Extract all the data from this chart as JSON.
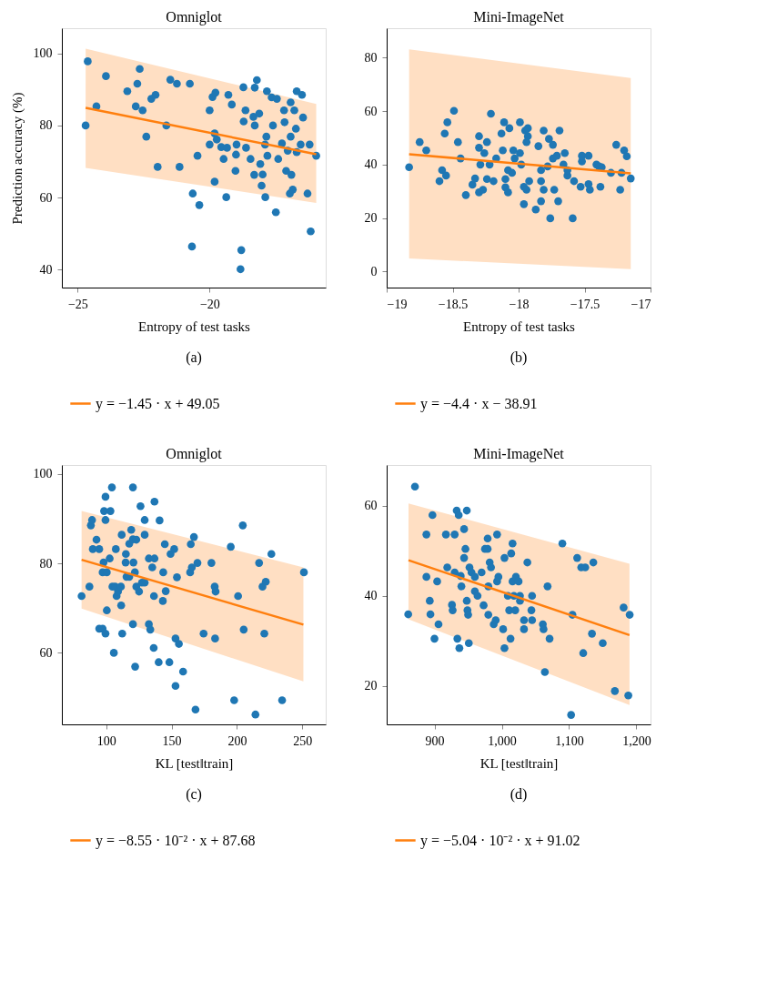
{
  "chart_data": [
    {
      "type": "scatter",
      "title": "Omniglot",
      "xlabel": "Entropy of test tasks",
      "ylabel": "Prediction accuracy (%)",
      "xlim": [
        -25.6,
        -15.6
      ],
      "ylim": [
        35,
        107
      ],
      "xticks": [
        {
          "value": -25,
          "label": "−25"
        },
        {
          "value": -20,
          "label": "−20"
        }
      ],
      "yticks": [
        40,
        60,
        80,
        100
      ],
      "legend": "bottom",
      "annotations": [
        "(a)"
      ],
      "series": [
        {
          "color": "#1f77b4",
          "marker": "circle",
          "x": [
            -24.62,
            -24.7,
            -24.29,
            -23.93,
            -23.12,
            -22.74,
            -22.65,
            -22.8,
            -22.54,
            -22.4,
            -22.21,
            -22.05,
            -21.97,
            -21.64,
            -21.49,
            -21.24,
            -21.14,
            -20.75,
            -20.64,
            -20.67,
            -20.46,
            -20.39,
            -20.0,
            -19.89,
            -19.78,
            -19.81,
            -19.81,
            -20.0,
            -19.73,
            -19.56,
            -19.34,
            -19.47,
            -19.37,
            -19.29,
            -19.16,
            -19.02,
            -18.98,
            -19.0,
            -18.8,
            -18.83,
            -18.72,
            -18.64,
            -18.71,
            -18.62,
            -18.45,
            -18.34,
            -18.31,
            -18.29,
            -18.21,
            -18.12,
            -18.29,
            -18.08,
            -18.03,
            -17.99,
            -17.9,
            -17.85,
            -17.89,
            -17.83,
            -17.81,
            -17.65,
            -17.6,
            -17.45,
            -17.49,
            -17.4,
            -17.26,
            -17.18,
            -17.16,
            -17.1,
            -17.04,
            -16.96,
            -16.93,
            -16.93,
            -16.9,
            -16.85,
            -16.79,
            -16.73,
            -16.7,
            -16.7,
            -16.55,
            -16.5,
            -16.46,
            -16.29,
            -16.21,
            -16.17,
            -15.96
          ],
          "values": [
            97.8,
            80.0,
            85.3,
            93.7,
            89.5,
            91.6,
            95.7,
            85.3,
            84.2,
            76.9,
            87.4,
            88.5,
            68.5,
            80.0,
            92.7,
            91.6,
            68.5,
            91.6,
            61.1,
            46.4,
            71.6,
            57.9,
            84.2,
            87.9,
            89.1,
            77.8,
            64.4,
            74.7,
            76.1,
            74.0,
            73.8,
            70.7,
            60.1,
            88.5,
            85.8,
            67.4,
            74.7,
            71.9,
            45.4,
            40.1,
            90.6,
            84.2,
            81.1,
            73.8,
            70.7,
            82.4,
            66.3,
            90.5,
            92.6,
            83.3,
            80.0,
            69.3,
            63.3,
            66.4,
            74.7,
            76.9,
            60.1,
            89.5,
            71.6,
            87.8,
            80.0,
            87.4,
            55.9,
            70.7,
            75.0,
            84.2,
            80.9,
            67.4,
            73.0,
            61.1,
            86.4,
            76.9,
            66.3,
            62.2,
            84.2,
            79.1,
            89.5,
            72.6,
            74.7,
            88.5,
            82.2,
            61.1,
            74.7,
            50.6,
            71.6
          ]
        },
        {
          "type": "line",
          "name": "y = −1.45 · x + 49.05",
          "color": "#ff7f0e",
          "x": [
            -24.7,
            -15.96
          ],
          "values": [
            84.9,
            72.0
          ],
          "lower": [
            68.2,
            58.5
          ],
          "upper": [
            101.3,
            86.0
          ]
        }
      ]
    },
    {
      "type": "scatter",
      "title": "Mini-ImageNet",
      "xlabel": "Entropy of test tasks",
      "xlim": [
        -19,
        -17
      ],
      "ylim": [
        -6,
        91
      ],
      "xticks": [
        {
          "value": -19,
          "label": "−19"
        },
        {
          "value": -18.5,
          "label": "−18.5"
        },
        {
          "value": -18,
          "label": "−18"
        },
        {
          "value": -17.5,
          "label": "−17.5"
        },
        {
          "value": -17,
          "label": "−17"
        }
      ],
      "yticks": [
        0,
        20,
        40,
        60,
        80
      ],
      "legend": "bottom",
      "annotations": [
        "(b)"
      ],
      "series": [
        {
          "color": "#1f77b4",
          "marker": "circle",
          "x": [
            -18.83,
            -18.75,
            -18.7,
            -18.6,
            -18.58,
            -18.55,
            -18.56,
            -18.54,
            -18.49,
            -18.46,
            -18.44,
            -18.4,
            -18.35,
            -18.33,
            -18.3,
            -18.27,
            -18.3,
            -18.3,
            -18.26,
            -18.29,
            -18.24,
            -18.24,
            -18.22,
            -18.21,
            -18.19,
            -18.17,
            -18.13,
            -18.11,
            -18.12,
            -18.1,
            -18.1,
            -18.08,
            -18.07,
            -18.08,
            -18.05,
            -18.04,
            -18.03,
            -17.99,
            -17.99,
            -17.98,
            -17.96,
            -17.96,
            -17.95,
            -17.93,
            -17.93,
            -17.94,
            -17.94,
            -17.92,
            -17.87,
            -17.85,
            -17.83,
            -17.83,
            -17.83,
            -17.81,
            -17.81,
            -17.78,
            -17.77,
            -17.76,
            -17.74,
            -17.74,
            -17.73,
            -17.71,
            -17.7,
            -17.69,
            -17.66,
            -17.65,
            -17.63,
            -17.63,
            -17.59,
            -17.58,
            -17.53,
            -17.52,
            -17.52,
            -17.47,
            -17.47,
            -17.46,
            -17.41,
            -17.39,
            -17.38,
            -17.37,
            -17.3,
            -17.26,
            -17.23,
            -17.22,
            -17.2,
            -17.18,
            -17.15
          ],
          "values": [
            39.0,
            48.4,
            45.3,
            33.8,
            37.9,
            35.9,
            51.6,
            55.8,
            60.1,
            48.4,
            42.3,
            28.6,
            32.5,
            34.8,
            29.6,
            30.6,
            50.6,
            46.3,
            44.3,
            40.0,
            48.4,
            34.6,
            40.0,
            59.0,
            33.8,
            42.3,
            51.6,
            55.8,
            45.3,
            34.6,
            31.5,
            29.6,
            53.6,
            37.9,
            36.9,
            45.3,
            42.3,
            55.8,
            44.3,
            40.0,
            31.7,
            25.2,
            52.7,
            53.6,
            50.6,
            48.4,
            30.6,
            33.8,
            23.2,
            46.9,
            37.9,
            33.8,
            26.3,
            52.7,
            30.6,
            39.3,
            49.6,
            19.9,
            47.4,
            42.3,
            30.6,
            43.3,
            26.3,
            52.7,
            40.0,
            44.3,
            35.9,
            37.9,
            19.9,
            33.8,
            31.7,
            41.2,
            43.3,
            43.3,
            32.7,
            30.6,
            40.0,
            39.3,
            31.7,
            39.0,
            36.9,
            47.4,
            30.6,
            36.9,
            45.3,
            43.1,
            34.8
          ]
        },
        {
          "type": "line",
          "name": "y = −4.4 · x − 38.91",
          "color": "#ff7f0e",
          "x": [
            -18.83,
            -17.15
          ],
          "values": [
            43.9,
            36.7
          ],
          "lower": [
            4.9,
            0.9
          ],
          "upper": [
            83.1,
            72.4
          ]
        }
      ]
    },
    {
      "type": "scatter",
      "title": "Omniglot",
      "xlabel": "KL [test‖train]",
      "xlim": [
        66,
        268
      ],
      "ylim": [
        44,
        102
      ],
      "xticks": [
        100,
        150,
        200,
        250
      ],
      "yticks": [
        60,
        80,
        100
      ],
      "legend": "bottom",
      "annotations": [
        "(c)"
      ],
      "series": [
        {
          "color": "#1f77b4",
          "marker": "circle",
          "x": [
            81.1,
            87.1,
            88.2,
            89.1,
            92.5,
            89.7,
            94.6,
            94.6,
            97.2,
            99.4,
            97.9,
            97.2,
            100.4,
            99.4,
            99.4,
            98.3,
            103.2,
            104.3,
            102.6,
            104.7,
            107.9,
            106.8,
            109.0,
            111.2,
            111.4,
            100.4,
            105.8,
            112.2,
            107.3,
            111.8,
            115.0,
            114.8,
            117.6,
            119.1,
            120.4,
            123.0,
            120.4,
            120.8,
            115.5,
            117.6,
            121.9,
            120.4,
            122.1,
            123.0,
            125.1,
            126.2,
            129.4,
            129.4,
            127.3,
            129.4,
            132.6,
            135.2,
            136.9,
            136.9,
            140.8,
            132.6,
            133.7,
            136.5,
            136.3,
            140.1,
            143.3,
            143.6,
            144.8,
            145.5,
            148.3,
            149.2,
            152.0,
            154.1,
            153.0,
            155.6,
            153.0,
            158.8,
            164.2,
            165.5,
            169.8,
            164.7,
            167.1,
            168.3,
            174.5,
            180.5,
            183.0,
            183.7,
            183.3,
            195.3,
            197.9,
            200.9,
            204.5,
            205.2,
            214.2,
            217.0,
            219.6,
            222.1,
            221.0,
            226.4,
            234.6,
            251.3
          ],
          "values": [
            72.7,
            74.8,
            88.5,
            89.7,
            85.3,
            83.2,
            83.2,
            65.4,
            65.4,
            64.3,
            80.2,
            78.0,
            78.0,
            89.7,
            94.9,
            91.7,
            91.7,
            97.0,
            81.1,
            74.8,
            72.7,
            74.8,
            73.7,
            74.8,
            70.6,
            69.5,
            60.0,
            64.3,
            83.2,
            86.4,
            82.1,
            80.2,
            84.4,
            87.5,
            85.4,
            85.3,
            97.0,
            80.2,
            77.0,
            77.0,
            78.0,
            66.4,
            56.9,
            74.8,
            73.7,
            92.8,
            89.7,
            86.4,
            75.7,
            75.7,
            81.1,
            79.1,
            81.1,
            93.8,
            89.6,
            66.4,
            65.2,
            72.7,
            61.1,
            57.9,
            71.6,
            78.0,
            84.3,
            73.8,
            57.9,
            82.1,
            83.2,
            76.9,
            63.2,
            62.0,
            52.6,
            55.8,
            78.0,
            79.1,
            80.1,
            84.3,
            85.9,
            47.3,
            64.3,
            80.1,
            74.8,
            73.7,
            63.2,
            83.7,
            49.4,
            72.7,
            88.5,
            65.2,
            46.2,
            80.1,
            74.8,
            75.9,
            64.3,
            82.1,
            49.4,
            78.0
          ]
        },
        {
          "type": "line",
          "name": "y = −8.55 · 10⁻² · x + 87.68",
          "color": "#ff7f0e",
          "x": [
            81.1,
            250.9
          ],
          "values": [
            80.8,
            66.3
          ],
          "lower": [
            69.9,
            53.6
          ],
          "upper": [
            91.7,
            79.1
          ]
        }
      ]
    },
    {
      "type": "scatter",
      "title": "Mini-ImageNet",
      "xlabel": "KL [test‖train]",
      "xlim": [
        829,
        1221
      ],
      "ylim": [
        11.5,
        69
      ],
      "xticks": [
        {
          "value": 900,
          "label": "900"
        },
        {
          "value": 1000,
          "label": "1,000"
        },
        {
          "value": 1100,
          "label": "1,100"
        },
        {
          "value": 1200,
          "label": "1,200"
        }
      ],
      "yticks": [
        20,
        40,
        60
      ],
      "legend": "bottom",
      "annotations": [
        "(d)"
      ],
      "series": [
        {
          "color": "#1f77b4",
          "marker": "circle",
          "x": [
            871,
            861,
            888,
            888,
            893,
            894,
            897,
            900,
            904,
            906,
            917,
            919,
            926,
            927,
            930,
            930,
            933,
            934,
            936,
            937,
            939,
            940,
            944,
            944,
            946,
            948,
            948,
            949,
            950,
            951,
            952,
            955,
            960,
            960,
            964,
            970,
            973,
            975,
            979,
            979,
            980,
            980,
            982,
            984,
            988,
            991,
            993,
            993,
            995,
            1002,
            1004,
            1004,
            1009,
            1011,
            1013,
            1014,
            1016,
            1016,
            1018,
            1020,
            1021,
            1025,
            1027,
            1027,
            1033,
            1033,
            1038,
            1044,
            1045,
            1045,
            1061,
            1062,
            1064,
            1068,
            1071,
            1090,
            1103,
            1105,
            1112,
            1118,
            1121,
            1124,
            1134,
            1136,
            1150,
            1168,
            1181,
            1188,
            1190
          ],
          "values": [
            64.2,
            35.9,
            53.6,
            44.2,
            38.9,
            35.9,
            57.9,
            30.5,
            43.2,
            33.7,
            53.6,
            46.3,
            38.0,
            36.8,
            53.6,
            45.2,
            58.9,
            30.5,
            57.9,
            28.4,
            44.4,
            42.1,
            54.8,
            48.4,
            50.4,
            58.9,
            38.9,
            36.8,
            35.8,
            29.5,
            46.3,
            45.2,
            44.2,
            41.0,
            40.0,
            45.2,
            37.9,
            50.4,
            50.4,
            52.7,
            42.1,
            35.8,
            47.4,
            46.3,
            33.7,
            34.6,
            43.2,
            53.6,
            44.2,
            32.6,
            48.4,
            28.4,
            40.0,
            36.8,
            30.5,
            49.4,
            51.6,
            43.2,
            40.0,
            36.8,
            44.2,
            43.2,
            40.0,
            38.9,
            34.6,
            32.6,
            47.4,
            36.8,
            40.0,
            34.6,
            33.7,
            32.6,
            23.1,
            42.1,
            30.5,
            51.6,
            13.6,
            35.8,
            48.4,
            46.3,
            27.3,
            46.3,
            31.6,
            47.4,
            29.5,
            18.9,
            37.4,
            17.9,
            35.8
          ]
        },
        {
          "type": "line",
          "name": "y = −5.04 · 10⁻² · x + 91.02",
          "color": "#ff7f0e",
          "x": [
            861.4,
            1189.7
          ],
          "values": [
            47.9,
            31.3
          ],
          "lower": [
            34.8,
            15.8
          ],
          "upper": [
            60.5,
            47.1
          ]
        }
      ]
    }
  ]
}
